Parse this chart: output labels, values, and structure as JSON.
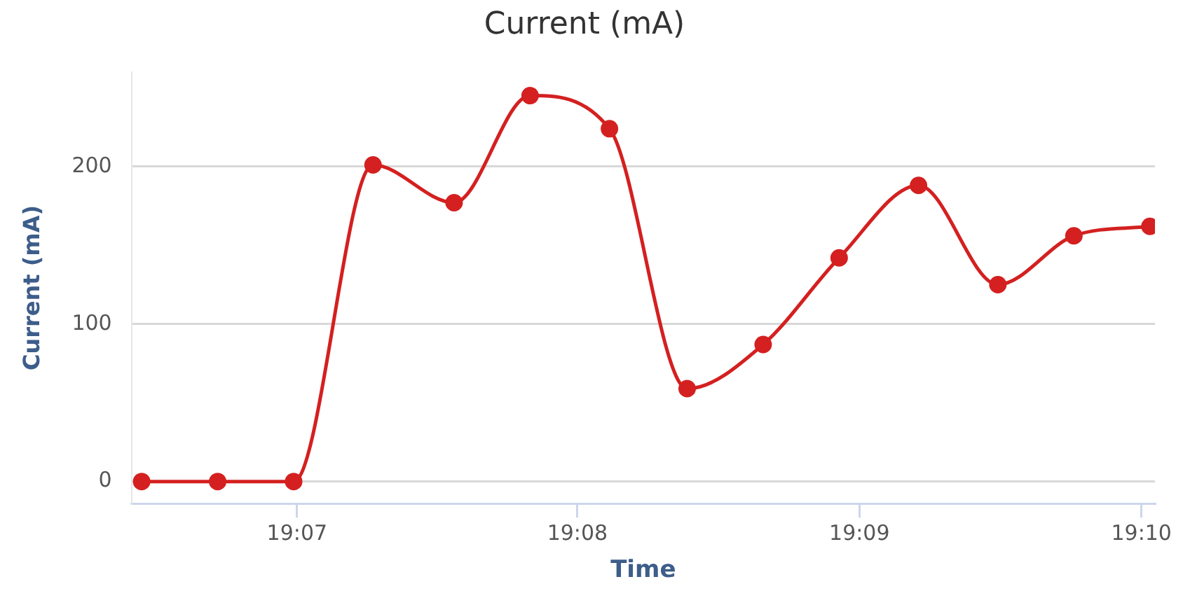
{
  "chart_data": {
    "type": "line",
    "title": "Current (mA)",
    "xlabel": "Time",
    "ylabel": "Current (mA)",
    "x": [
      19.1075,
      19.112,
      19.1165,
      19.1212,
      19.126,
      19.1305,
      19.1352,
      19.1398,
      19.1443,
      19.1488,
      19.1535,
      19.1582,
      19.1627,
      19.1672
    ],
    "series": [
      {
        "color": "#d42020",
        "values": [
          0,
          0,
          0,
          201,
          177,
          245,
          224,
          59,
          87,
          142,
          188,
          125,
          156,
          162
        ]
      }
    ],
    "xlim": [
      19.1069,
      19.1675
    ],
    "xticks": [
      {
        "value": 19.1167,
        "label": "19:07"
      },
      {
        "value": 19.1333,
        "label": "19:08"
      },
      {
        "value": 19.15,
        "label": "19:09"
      },
      {
        "value": 19.1667,
        "label": "19:10"
      }
    ],
    "ylim": [
      -14,
      260
    ],
    "yticks": [
      0,
      100,
      200
    ],
    "grid": "y",
    "legend": false,
    "marker": "circle",
    "line_style": "solid"
  }
}
